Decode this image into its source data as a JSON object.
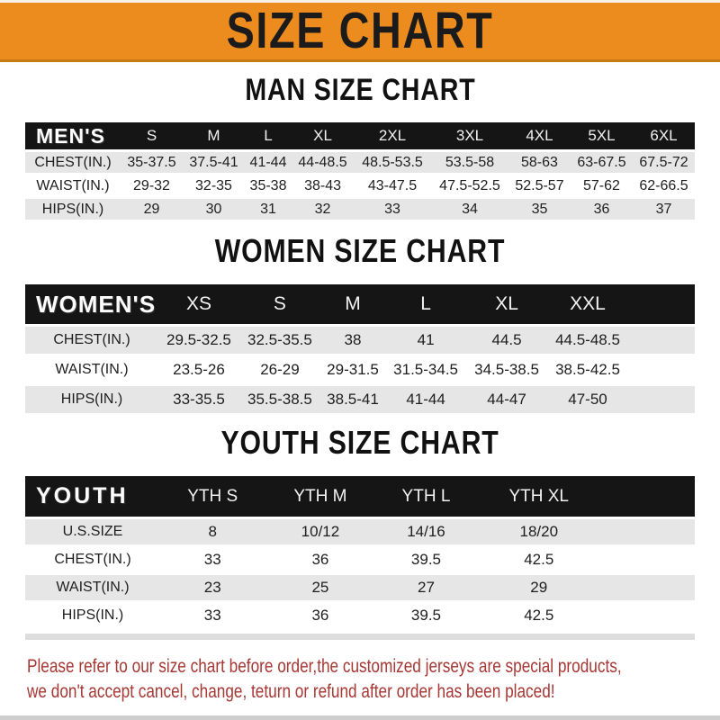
{
  "banner": {
    "title": "SIZE CHART"
  },
  "colors": {
    "banner-orange": "#EC8B1E",
    "banner-border": "#C87B12",
    "bar-black": "#151515",
    "row-gray": "#E6E6E6",
    "footer-red": "#A63733",
    "text-dark": "#1E1E1E"
  },
  "sections": [
    {
      "id": "men",
      "heading": "MAN SIZE CHART",
      "header_label": "MEN'S",
      "columns": [
        "S",
        "M",
        "L",
        "XL",
        "2XL",
        "3XL",
        "4XL",
        "5XL",
        "6XL"
      ],
      "trailing_blank": false,
      "rows": [
        {
          "label": "CHEST(IN.)",
          "values": [
            "35-37.5",
            "37.5-41",
            "41-44",
            "44-48.5",
            "48.5-53.5",
            "53.5-58",
            "58-63",
            "63-67.5",
            "67.5-72"
          ]
        },
        {
          "label": "WAIST(IN.)",
          "values": [
            "29-32",
            "32-35",
            "35-38",
            "38-43",
            "43-47.5",
            "47.5-52.5",
            "52.5-57",
            "57-62",
            "62-66.5"
          ]
        },
        {
          "label": "HIPS(IN.)",
          "values": [
            "29",
            "30",
            "31",
            "32",
            "33",
            "34",
            "35",
            "36",
            "37"
          ]
        }
      ]
    },
    {
      "id": "women",
      "heading": "WOMEN SIZE CHART",
      "header_label": "WOMEN'S",
      "columns": [
        "XS",
        "S",
        "M",
        "L",
        "XL",
        "XXL"
      ],
      "trailing_blank": true,
      "rows": [
        {
          "label": "CHEST(IN.)",
          "values": [
            "29.5-32.5",
            "32.5-35.5",
            "38",
            "41",
            "44.5",
            "44.5-48.5"
          ]
        },
        {
          "label": "WAIST(IN.)",
          "values": [
            "23.5-26",
            "26-29",
            "29-31.5",
            "31.5-34.5",
            "34.5-38.5",
            "38.5-42.5"
          ]
        },
        {
          "label": "HIPS(IN.)",
          "values": [
            "33-35.5",
            "35.5-38.5",
            "38.5-41",
            "41-44",
            "44-47",
            "47-50"
          ]
        }
      ]
    },
    {
      "id": "youth",
      "heading": "YOUTH SIZE CHART",
      "header_label": "YOUTH",
      "columns": [
        "YTH S",
        "YTH M",
        "YTH L",
        "YTH XL"
      ],
      "trailing_blank": true,
      "rows": [
        {
          "label": "U.S.SIZE",
          "values": [
            "8",
            "10/12",
            "14/16",
            "18/20"
          ]
        },
        {
          "label": "CHEST(IN.)",
          "values": [
            "33",
            "36",
            "39.5",
            "42.5"
          ]
        },
        {
          "label": "WAIST(IN.)",
          "values": [
            "23",
            "25",
            "27",
            "29"
          ]
        },
        {
          "label": "HIPS(IN.)",
          "values": [
            "33",
            "36",
            "39.5",
            "42.5"
          ]
        }
      ]
    }
  ],
  "footer": {
    "line1": "Please refer to our size chart before order,the customized jerseys are special products,",
    "line2": "we don't accept cancel, change, teturn or refund after order has been placed!"
  }
}
